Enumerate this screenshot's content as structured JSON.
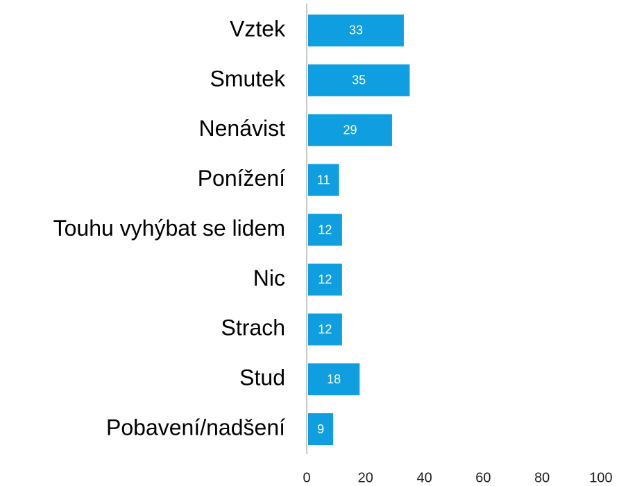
{
  "chart_data": {
    "type": "bar",
    "orientation": "horizontal",
    "categories": [
      "Vztek",
      "Smutek",
      "Nenávist",
      "Ponížení",
      "Touhu vyhýbat se lidem",
      "Nic",
      "Strach",
      "Stud",
      "Pobavení/nadšení"
    ],
    "values": [
      33,
      35,
      29,
      11,
      12,
      12,
      12,
      18,
      9
    ],
    "color": "#0f9ee0",
    "xlim": [
      0,
      100
    ],
    "xticks": [
      0,
      20,
      40,
      60,
      80,
      100
    ],
    "grid": false
  }
}
